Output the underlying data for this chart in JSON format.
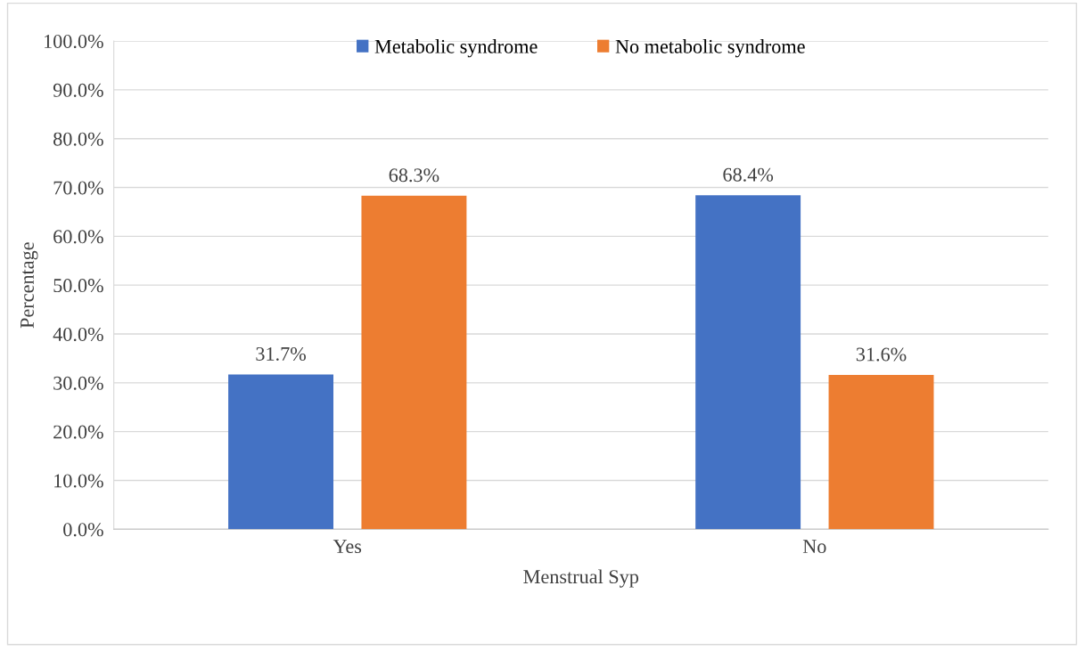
{
  "chart_data": {
    "type": "bar",
    "xlabel": "Menstrual Syp",
    "ylabel": "Percentage",
    "categories": [
      "Yes",
      "No"
    ],
    "series": [
      {
        "name": "Metabolic syndrome",
        "color": "#4472c4",
        "values": [
          31.7,
          68.4
        ],
        "value_labels": [
          "31.7%",
          "68.4%"
        ]
      },
      {
        "name": "No metabolic syndrome",
        "color": "#ed7d31",
        "values": [
          68.3,
          31.6
        ],
        "value_labels": [
          "68.3%",
          "31.6%"
        ]
      }
    ],
    "ylim": [
      0,
      100
    ],
    "yticks": [
      {
        "value": 0,
        "label": "0.0%"
      },
      {
        "value": 10,
        "label": "10.0%"
      },
      {
        "value": 20,
        "label": "20.0%"
      },
      {
        "value": 30,
        "label": "30.0%"
      },
      {
        "value": 40,
        "label": "40.0%"
      },
      {
        "value": 50,
        "label": "50.0%"
      },
      {
        "value": 60,
        "label": "60.0%"
      },
      {
        "value": 70,
        "label": "70.0%"
      },
      {
        "value": 80,
        "label": "80.0%"
      },
      {
        "value": 90,
        "label": "90.0%"
      },
      {
        "value": 100,
        "label": "100.0%"
      }
    ],
    "grid": "y",
    "legend": "top"
  }
}
